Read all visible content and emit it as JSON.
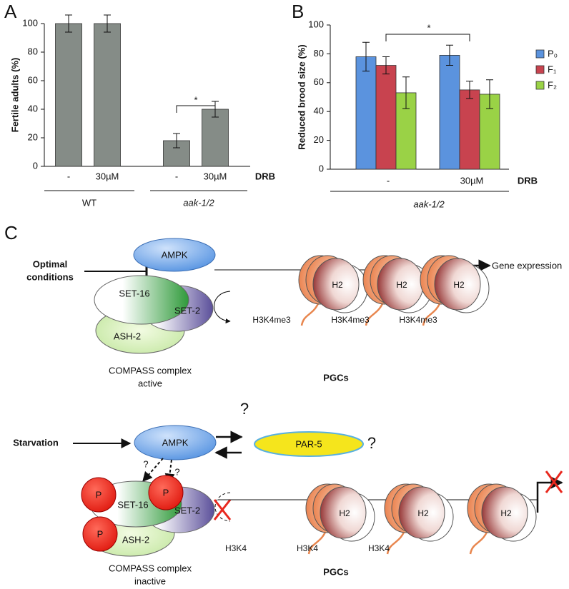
{
  "chart_data": [
    {
      "type": "bar",
      "label": "A",
      "ylabel": "Fertile adults (%)",
      "categories": [
        "-",
        "30µM",
        "-",
        "30µM"
      ],
      "values": [
        100,
        100,
        18,
        40
      ],
      "errors": [
        6,
        6,
        5,
        5.5
      ],
      "color": "#858c87",
      "ylim": [
        0,
        100
      ],
      "yticks": [
        0,
        20,
        40,
        60,
        80,
        100
      ],
      "x_label": "DRB",
      "groups": [
        "WT",
        "aak-1/2"
      ],
      "annotation": "*"
    },
    {
      "type": "bar",
      "label": "B",
      "ylabel": "Reduced brood size (%)",
      "categories": [
        "-",
        "30µM"
      ],
      "series": [
        {
          "name": "P₀",
          "color": "#5b93de",
          "values": [
            78,
            79
          ],
          "errors": [
            10,
            7
          ]
        },
        {
          "name": "F₁",
          "color": "#c8434f",
          "values": [
            72,
            55
          ],
          "errors": [
            6,
            6
          ]
        },
        {
          "name": "F₂",
          "color": "#9ad246",
          "values": [
            53,
            52
          ],
          "errors": [
            11,
            10
          ]
        }
      ],
      "ylim": [
        0,
        100
      ],
      "yticks": [
        0,
        20,
        40,
        60,
        80,
        100
      ],
      "x_label": "DRB",
      "group": "aak-1/2",
      "annotation": "*"
    }
  ],
  "diagram": {
    "label": "C",
    "top": {
      "condition": [
        "Optimal",
        "conditions"
      ],
      "kinase": "AMPK",
      "set16": "SET-16",
      "set2": "SET-2",
      "ash2": "ASH-2",
      "h2": [
        "H2",
        "H2",
        "H2"
      ],
      "marks": [
        "H3K4me3",
        "H3K4me3",
        "H3K4me3"
      ],
      "output": "Gene expression",
      "complex": [
        "COMPASS complex",
        "active"
      ],
      "cells": "PGCs"
    },
    "bottom": {
      "condition": "Starvation",
      "kinase": "AMPK",
      "q": [
        "?",
        "?",
        "?",
        "?"
      ],
      "partner": "PAR-5",
      "p": [
        "P",
        "P",
        "P"
      ],
      "set16": "SET-16",
      "set2": "SET-2",
      "ash2": "ASH-2",
      "h2": [
        "H2",
        "H2",
        "H2"
      ],
      "marks": [
        "H3K4",
        "H3K4",
        "H3K4"
      ],
      "complex": [
        "COMPASS complex",
        "inactive"
      ],
      "cells": "PGCs"
    }
  }
}
